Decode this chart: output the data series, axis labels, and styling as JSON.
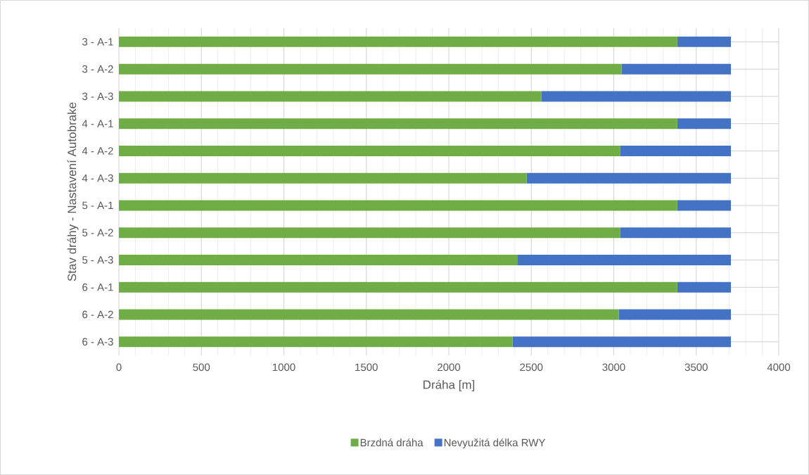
{
  "chart_data": {
    "type": "bar",
    "orientation": "horizontal",
    "stacked": true,
    "xlabel": "Dráha [m]",
    "ylabel": "Stav dráhy - Nastavení Autobrake",
    "categories": [
      "3 - A-1",
      "3 - A-2",
      "3 - A-3",
      "4 - A-1",
      "4 - A-2",
      "4 - A-3",
      "5 - A-1",
      "5 - A-2",
      "5 - A-3",
      "6 - A-1",
      "6 - A-2",
      "6 - A-3"
    ],
    "series": [
      {
        "name": "Brzdná dráha",
        "color": "#70ad47",
        "values": [
          3385,
          3048,
          2562,
          3385,
          3040,
          2472,
          3385,
          3040,
          2418,
          3385,
          3030,
          2386
        ]
      },
      {
        "name": "Nevyužitá délka RWY",
        "color": "#4472c4",
        "values": [
          325,
          662,
          1148,
          325,
          670,
          1238,
          325,
          670,
          1292,
          325,
          680,
          1324
        ]
      }
    ],
    "xlim": [
      0,
      4000
    ],
    "xticks": [
      0,
      500,
      1000,
      1500,
      2000,
      2500,
      3000,
      3500,
      4000
    ],
    "grid": true,
    "legend": "bottom"
  }
}
